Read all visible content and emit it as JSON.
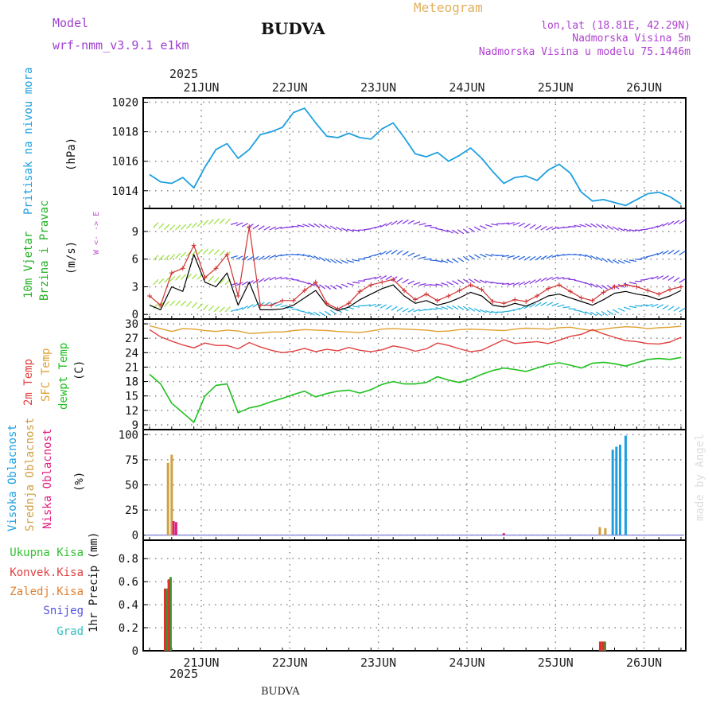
{
  "header": {
    "model_label": "Model",
    "model_name": "wrf-nmm_v3.9.1 e1km",
    "station": "BUDVA",
    "product": "Meteogram",
    "lonlat": "lon,lat (18.81E, 42.29N)",
    "elevation": "Nadmorska Visina 5m",
    "model_elevation": "Nadmorska Visina u modelu 75.1446m",
    "footer_station": "BUDVA",
    "credit": "made by Angel"
  },
  "colors": {
    "pressure": "#1ea0e0",
    "wind_speed": "#000000",
    "wind_gust": "#d03030",
    "temp2m": "#e04040",
    "sfc_temp": "#e0a030",
    "dewpt": "#20c020",
    "cloud_high": "#1ea0e0",
    "cloud_mid": "#d0a040",
    "cloud_low": "#e02080",
    "precip_total": "#30a030",
    "precip_conv": "#e03030",
    "grid": "#888888"
  },
  "time_axis": {
    "year": "2025",
    "labels": [
      "21JUN",
      "22JUN",
      "23JUN",
      "24JUN",
      "25JUN",
      "26JUN"
    ]
  },
  "panels": {
    "pressure": {
      "title": "Pritisak na nivou mora",
      "unit": "(hPa)"
    },
    "wind": {
      "title1": "10m Vjetar",
      "title2": "Brzina i Pravac",
      "unit": "(m/s)",
      "compass": "W <- -> E"
    },
    "temp": {
      "t2m": "2m Temp",
      "sfc": "SFC Temp",
      "dew": "dewpt Temp",
      "unit": "(C)"
    },
    "cloud": {
      "high": "Visoka Oblacnost",
      "mid": "Srednja Oblacnost",
      "low": "Niska Oblacnost",
      "unit": "(%)"
    },
    "precip": {
      "total": "Ukupna Kisa",
      "conv": "Konvek.Kisa",
      "frozen": "Zaledj.Kisa",
      "snow": "Snijeg",
      "grad": "Grad",
      "unit": "1hr Precip (mm)"
    }
  },
  "chart_data": [
    {
      "type": "line",
      "ylabel": "(hPa)",
      "ylim": [
        1012.8,
        1020.3
      ],
      "yticks": [
        1014,
        1016,
        1018,
        1020
      ],
      "x_hours": [
        0,
        3,
        6,
        9,
        12,
        15,
        18,
        21,
        24,
        27,
        30,
        33,
        36,
        39,
        42,
        45,
        48,
        51,
        54,
        57,
        60,
        63,
        66,
        69,
        72,
        75,
        78,
        81,
        84,
        87,
        90,
        93,
        96,
        99,
        102,
        105,
        108,
        111,
        114,
        117,
        120,
        123,
        126,
        129,
        132,
        135,
        138,
        141,
        144
      ],
      "series": [
        {
          "name": "Pritisak na nivou mora",
          "values": [
            1015.1,
            1014.6,
            1014.5,
            1014.9,
            1014.2,
            1015.6,
            1016.8,
            1017.2,
            1016.2,
            1016.8,
            1017.8,
            1018.0,
            1018.3,
            1019.3,
            1019.6,
            1018.6,
            1017.7,
            1017.6,
            1017.9,
            1017.6,
            1017.5,
            1018.2,
            1018.6,
            1017.6,
            1016.5,
            1016.3,
            1016.6,
            1016.0,
            1016.4,
            1016.9,
            1016.2,
            1015.3,
            1014.5,
            1014.9,
            1015.0,
            1014.7,
            1015.4,
            1015.8,
            1015.2,
            1013.9,
            1013.3,
            1013.4,
            1013.2,
            1013.0,
            1013.4,
            1013.8,
            1013.9,
            1013.6,
            1013.1
          ]
        }
      ]
    },
    {
      "type": "line",
      "ylabel": "(m/s)",
      "ylim": [
        -0.5,
        11.5
      ],
      "yticks": [
        0,
        3,
        6,
        9
      ],
      "x_hours": [
        0,
        3,
        6,
        9,
        12,
        15,
        18,
        21,
        24,
        27,
        30,
        33,
        36,
        39,
        42,
        45,
        48,
        51,
        54,
        57,
        60,
        63,
        66,
        69,
        72,
        75,
        78,
        81,
        84,
        87,
        90,
        93,
        96,
        99,
        102,
        105,
        108,
        111,
        114,
        117,
        120,
        123,
        126,
        129,
        132,
        135,
        138,
        141,
        144
      ],
      "series": [
        {
          "name": "speed",
          "values": [
            1.0,
            0.5,
            3.0,
            2.5,
            6.5,
            3.5,
            3.0,
            4.5,
            1.0,
            3.5,
            0.5,
            0.5,
            0.6,
            1.0,
            1.8,
            2.6,
            1.0,
            0.4,
            0.8,
            1.6,
            2.2,
            2.8,
            3.2,
            2.0,
            1.2,
            1.5,
            1.0,
            1.3,
            1.8,
            2.4,
            2.0,
            1.0,
            0.8,
            1.2,
            0.9,
            1.4,
            2.0,
            2.2,
            1.8,
            1.4,
            1.0,
            1.6,
            2.3,
            2.5,
            2.2,
            2.0,
            1.6,
            2.0,
            2.6
          ]
        },
        {
          "name": "gust",
          "values": [
            2.0,
            1.0,
            4.5,
            5.0,
            7.5,
            4.0,
            5.0,
            6.5,
            2.0,
            9.5,
            1.0,
            1.0,
            1.5,
            1.5,
            2.6,
            3.5,
            1.2,
            0.6,
            1.2,
            2.5,
            3.2,
            3.5,
            3.8,
            2.6,
            1.6,
            2.2,
            1.5,
            2.0,
            2.6,
            3.2,
            2.7,
            1.4,
            1.2,
            1.6,
            1.4,
            2.0,
            2.8,
            3.2,
            2.5,
            1.8,
            1.5,
            2.4,
            3.0,
            3.2,
            3.0,
            2.6,
            2.2,
            2.7,
            3.0
          ]
        }
      ]
    },
    {
      "type": "line",
      "ylabel": "(C)",
      "ylim": [
        8,
        31
      ],
      "yticks": [
        9,
        12,
        15,
        18,
        21,
        24,
        27,
        30
      ],
      "x_hours": [
        0,
        3,
        6,
        9,
        12,
        15,
        18,
        21,
        24,
        27,
        30,
        33,
        36,
        39,
        42,
        45,
        48,
        51,
        54,
        57,
        60,
        63,
        66,
        69,
        72,
        75,
        78,
        81,
        84,
        87,
        90,
        93,
        96,
        99,
        102,
        105,
        108,
        111,
        114,
        117,
        120,
        123,
        126,
        129,
        132,
        135,
        138,
        141,
        144
      ],
      "series": [
        {
          "name": "2m Temp",
          "values": [
            28.8,
            27.3,
            26.4,
            25.6,
            25.0,
            26.0,
            25.5,
            25.5,
            24.8,
            26.1,
            25.2,
            24.5,
            24.0,
            24.3,
            24.9,
            24.2,
            24.7,
            24.4,
            25.1,
            24.5,
            24.2,
            24.6,
            25.4,
            25.0,
            24.3,
            24.8,
            26.0,
            25.5,
            24.8,
            24.2,
            24.5,
            25.6,
            26.7,
            25.9,
            26.1,
            26.3,
            25.9,
            26.6,
            27.4,
            27.8,
            28.8,
            27.9,
            27.2,
            26.5,
            26.3,
            25.9,
            25.8,
            26.2,
            27.2
          ]
        },
        {
          "name": "SFC Temp",
          "values": [
            29.6,
            29.0,
            28.4,
            29.0,
            28.9,
            28.6,
            28.4,
            28.7,
            28.5,
            28.0,
            28.1,
            28.3,
            28.3,
            28.6,
            28.8,
            28.7,
            28.6,
            28.4,
            28.3,
            28.2,
            28.5,
            28.9,
            29.0,
            28.9,
            28.8,
            28.7,
            28.4,
            28.5,
            28.8,
            28.9,
            28.8,
            28.7,
            28.6,
            28.9,
            29.1,
            29.0,
            28.9,
            29.2,
            29.3,
            28.9,
            28.6,
            28.9,
            29.2,
            29.4,
            29.3,
            29.0,
            29.2,
            29.3,
            29.5
          ]
        },
        {
          "name": "dewpt Temp",
          "values": [
            19.5,
            17.5,
            13.5,
            11.5,
            9.5,
            15.0,
            17.2,
            17.5,
            11.5,
            12.5,
            13.0,
            13.8,
            14.5,
            15.3,
            16.0,
            14.8,
            15.5,
            16.0,
            16.2,
            15.6,
            16.3,
            17.4,
            18.0,
            17.5,
            17.5,
            17.8,
            19.0,
            18.3,
            17.8,
            18.5,
            19.5,
            20.3,
            20.8,
            20.5,
            20.1,
            20.8,
            21.5,
            21.9,
            21.4,
            20.8,
            21.8,
            22.0,
            21.7,
            21.2,
            21.9,
            22.6,
            22.8,
            22.6,
            23.0
          ]
        }
      ]
    },
    {
      "type": "bar",
      "ylabel": "(%)",
      "ylim": [
        -5,
        105
      ],
      "yticks": [
        0,
        25,
        50,
        75,
        100
      ],
      "series": [
        {
          "name": "Visoka Oblacnost",
          "x_hours": [
            125.5,
            126.5,
            127.5,
            129
          ],
          "values": [
            85,
            88,
            90,
            99
          ]
        },
        {
          "name": "Srednja Oblacnost",
          "x_hours": [
            5,
            6,
            122,
            123.5
          ],
          "values": [
            72,
            80,
            8,
            7
          ]
        },
        {
          "name": "Niska Oblacnost",
          "x_hours": [
            6.5,
            7.2,
            96
          ],
          "values": [
            14,
            13,
            2
          ]
        }
      ]
    },
    {
      "type": "bar",
      "ylabel": "1hr Precip (mm)",
      "ylim": [
        0,
        0.96
      ],
      "yticks": [
        0,
        0.2,
        0.4,
        0.6,
        0.8
      ],
      "series": [
        {
          "name": "Ukupna Kisa",
          "x_hours": [
            4.7,
            5.7,
            122.6,
            123.4
          ],
          "values": [
            0.54,
            0.64,
            0.08,
            0.08
          ]
        },
        {
          "name": "Konvek.Kisa",
          "x_hours": [
            4.2,
            5.2,
            122.1,
            122.9
          ],
          "values": [
            0.54,
            0.62,
            0.08,
            0.08
          ]
        }
      ]
    }
  ]
}
